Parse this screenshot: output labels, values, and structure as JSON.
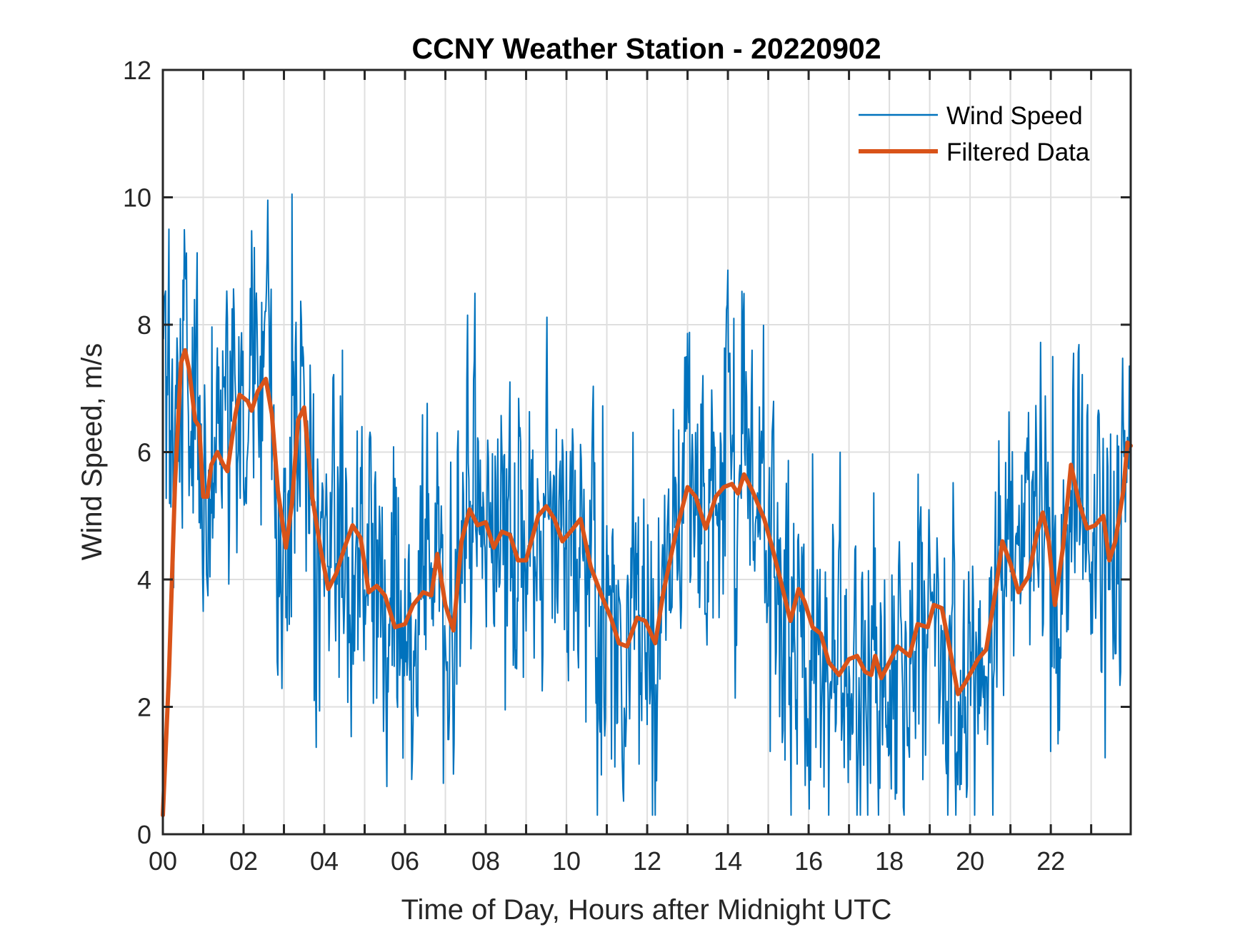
{
  "chart_data": {
    "type": "line",
    "title": "CCNY Weather Station - 20220902",
    "xlabel": "Time of Day, Hours after Midnight UTC",
    "ylabel": "Wind Speed, m/s",
    "xlim": [
      0,
      23.98
    ],
    "ylim": [
      0,
      12
    ],
    "grid": true,
    "legend_position": "top-right",
    "x_ticks": [
      0,
      2,
      4,
      6,
      8,
      10,
      12,
      14,
      16,
      18,
      20,
      22
    ],
    "x_tick_labels": [
      "00",
      "02",
      "04",
      "06",
      "08",
      "10",
      "12",
      "14",
      "16",
      "18",
      "20",
      "22"
    ],
    "x_minor_grid_step": 1,
    "y_ticks": [
      0,
      2,
      4,
      6,
      8,
      10,
      12
    ],
    "y_tick_labels": [
      "0",
      "2",
      "4",
      "6",
      "8",
      "10",
      "12"
    ],
    "series": [
      {
        "name": "Wind Speed",
        "color": "#0072BD",
        "noise_seed": 20220902,
        "note": "Raw 1-minute wind speed; plotted series reproduced as filtered curve plus high-frequency scatter, with notable extrema listed",
        "extrema": [
          {
            "x": 0.0,
            "y": 8.6
          },
          {
            "x": 0.15,
            "y": 9.5
          },
          {
            "x": 0.5,
            "y": 8.7
          },
          {
            "x": 1.0,
            "y": 3.5
          },
          {
            "x": 1.6,
            "y": 8.1
          },
          {
            "x": 2.45,
            "y": 8.35
          },
          {
            "x": 3.2,
            "y": 10.05
          },
          {
            "x": 3.05,
            "y": 3.4
          },
          {
            "x": 3.75,
            "y": 2.1
          },
          {
            "x": 4.45,
            "y": 7.6
          },
          {
            "x": 5.55,
            "y": 0.75
          },
          {
            "x": 6.95,
            "y": 0.8
          },
          {
            "x": 7.55,
            "y": 8.15
          },
          {
            "x": 8.6,
            "y": 7.1
          },
          {
            "x": 11.8,
            "y": 1.1
          },
          {
            "x": 14.15,
            "y": 8.1
          },
          {
            "x": 14.6,
            "y": 7.6
          },
          {
            "x": 15.05,
            "y": 1.3
          },
          {
            "x": 16.05,
            "y": 0.85
          },
          {
            "x": 18.15,
            "y": 0.55
          },
          {
            "x": 19.75,
            "y": 0.7
          },
          {
            "x": 22.0,
            "y": 1.3
          },
          {
            "x": 22.05,
            "y": 7.5
          },
          {
            "x": 23.35,
            "y": 1.2
          },
          {
            "x": 23.95,
            "y": 7.35
          }
        ]
      },
      {
        "name": "Filtered Data",
        "color": "#D95319",
        "x": [
          0.0,
          0.15,
          0.3,
          0.45,
          0.55,
          0.65,
          0.8,
          0.9,
          1.0,
          1.1,
          1.2,
          1.35,
          1.5,
          1.6,
          1.8,
          1.9,
          2.1,
          2.2,
          2.35,
          2.55,
          2.7,
          2.85,
          3.05,
          3.2,
          3.35,
          3.5,
          3.7,
          3.9,
          4.1,
          4.3,
          4.5,
          4.7,
          4.9,
          5.1,
          5.3,
          5.5,
          5.75,
          6.0,
          6.2,
          6.45,
          6.65,
          6.8,
          7.0,
          7.2,
          7.4,
          7.6,
          7.8,
          8.0,
          8.2,
          8.4,
          8.6,
          8.8,
          9.0,
          9.3,
          9.5,
          9.7,
          9.9,
          10.1,
          10.35,
          10.6,
          10.9,
          11.1,
          11.3,
          11.5,
          11.75,
          11.95,
          12.2,
          12.4,
          12.7,
          13.0,
          13.2,
          13.45,
          13.7,
          13.9,
          14.1,
          14.25,
          14.4,
          14.6,
          14.9,
          15.1,
          15.3,
          15.55,
          15.75,
          15.9,
          16.1,
          16.3,
          16.5,
          16.75,
          17.0,
          17.2,
          17.4,
          17.55,
          17.65,
          17.8,
          18.0,
          18.2,
          18.5,
          18.7,
          18.95,
          19.1,
          19.3,
          19.5,
          19.7,
          19.9,
          20.2,
          20.4,
          20.65,
          20.8,
          21.0,
          21.2,
          21.45,
          21.65,
          21.8,
          21.95,
          22.1,
          22.3,
          22.5,
          22.7,
          22.9,
          23.1,
          23.3,
          23.45,
          23.6,
          23.8,
          23.9,
          23.98
        ],
        "y": [
          0.3,
          2.5,
          5.5,
          7.4,
          7.6,
          7.3,
          6.5,
          6.4,
          5.3,
          5.3,
          5.8,
          6.0,
          5.8,
          5.7,
          6.6,
          6.9,
          6.8,
          6.65,
          6.95,
          7.15,
          6.6,
          5.4,
          4.5,
          5.2,
          6.5,
          6.7,
          5.3,
          4.5,
          3.85,
          4.1,
          4.5,
          4.85,
          4.65,
          3.8,
          3.9,
          3.75,
          3.25,
          3.3,
          3.6,
          3.8,
          3.75,
          4.4,
          3.6,
          3.2,
          4.6,
          5.1,
          4.85,
          4.9,
          4.5,
          4.75,
          4.7,
          4.3,
          4.3,
          5.0,
          5.15,
          4.95,
          4.6,
          4.75,
          4.95,
          4.2,
          3.7,
          3.4,
          3.0,
          2.95,
          3.4,
          3.35,
          3.0,
          3.8,
          4.7,
          5.45,
          5.3,
          4.8,
          5.3,
          5.45,
          5.5,
          5.35,
          5.65,
          5.4,
          4.95,
          4.5,
          4.0,
          3.35,
          3.85,
          3.65,
          3.25,
          3.15,
          2.7,
          2.5,
          2.75,
          2.8,
          2.55,
          2.5,
          2.8,
          2.45,
          2.7,
          2.95,
          2.8,
          3.3,
          3.25,
          3.6,
          3.55,
          2.9,
          2.2,
          2.4,
          2.75,
          2.9,
          3.9,
          4.6,
          4.25,
          3.8,
          4.05,
          4.7,
          5.05,
          4.6,
          3.6,
          4.5,
          5.8,
          5.2,
          4.8,
          4.85,
          5.0,
          4.3,
          4.6,
          5.4,
          6.15,
          6.1
        ]
      }
    ]
  },
  "colors": {
    "axis": "#262626",
    "grid": "#DFDFDF",
    "background": "#FFFFFF"
  }
}
